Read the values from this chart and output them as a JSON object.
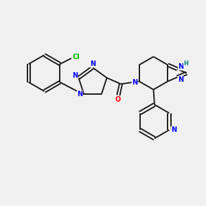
{
  "background_color": "#f0f0f0",
  "bond_color": "#1a1a1a",
  "N_color": "#0000ff",
  "O_color": "#ff0000",
  "Cl_color": "#00bb00",
  "H_color": "#008080",
  "figsize": [
    3.0,
    3.0
  ],
  "dpi": 100,
  "xlim": [
    0,
    10
  ],
  "ylim": [
    0,
    10
  ]
}
